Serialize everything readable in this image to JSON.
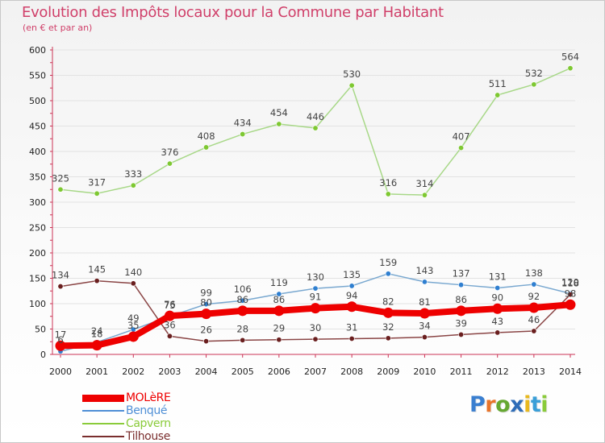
{
  "header": {
    "title": "Evolution des Impôts locaux pour la Commune par Habitant",
    "subtitle": "(en € et par an)"
  },
  "logo": {
    "text": "Proxiti",
    "letter_colors": [
      "#3a7fd0",
      "#e8742a",
      "#66a832",
      "#2f6db8",
      "#e8b81e",
      "#3a9fd8",
      "#8acb3a"
    ]
  },
  "colors": {
    "title": "#d0406a",
    "axis": "#cc3355",
    "grid": "#e2e2e2",
    "tick_text": "#222222",
    "value_text": "#444444"
  },
  "chart_data": {
    "type": "line",
    "title": "Evolution des Impôts locaux pour la Commune par Habitant",
    "subtitle": "(en € et par an)",
    "x": [
      "2000",
      "2001",
      "2002",
      "2003",
      "2004",
      "2005",
      "2006",
      "2007",
      "2008",
      "2009",
      "2010",
      "2011",
      "2012",
      "2013",
      "2014"
    ],
    "ylim": [
      0,
      600
    ],
    "yticks": [
      0,
      50,
      100,
      150,
      200,
      250,
      300,
      350,
      400,
      450,
      500,
      550,
      600
    ],
    "grid": true,
    "legend_position": "bottom-left",
    "series": [
      {
        "name": "MOLèRE",
        "values": [
          17,
          18,
          35,
          76,
          80,
          86,
          86,
          91,
          94,
          82,
          81,
          86,
          90,
          92,
          98
        ],
        "line_color": "#ee0000",
        "marker_color": "#ee0000",
        "legend_color": "#ee0000",
        "emphasis": true,
        "labels": [
          "17",
          "18",
          "35",
          "76",
          "80",
          "86",
          "86",
          "91",
          "94",
          "82",
          "81",
          "86",
          "90",
          "92",
          "98"
        ]
      },
      {
        "name": "Benqué",
        "values": [
          6,
          24,
          49,
          75,
          99,
          106,
          119,
          130,
          135,
          159,
          143,
          137,
          131,
          138,
          120
        ],
        "line_color": "#79a8d0",
        "marker_color": "#2f7fd0",
        "legend_color": "#4f8fd6",
        "emphasis": false,
        "labels": [
          "6",
          "24",
          "49",
          "75",
          "99",
          "106",
          "119",
          "130",
          "135",
          "159",
          "143",
          "137",
          "131",
          "138",
          "120"
        ]
      },
      {
        "name": "Capvern",
        "values": [
          325,
          317,
          333,
          376,
          408,
          434,
          454,
          446,
          530,
          316,
          314,
          407,
          511,
          532,
          564
        ],
        "line_color": "#a8d888",
        "marker_color": "#7ec832",
        "legend_color": "#8acb3a",
        "emphasis": false,
        "labels": [
          "325",
          "317",
          "333",
          "376",
          "408",
          "434",
          "454",
          "446",
          "530",
          "316",
          "314",
          "407",
          "511",
          "532",
          "564"
        ]
      },
      {
        "name": "Tilhouse",
        "values": [
          134,
          145,
          140,
          36,
          26,
          28,
          29,
          30,
          31,
          32,
          34,
          39,
          43,
          46,
          118
        ],
        "line_color": "#8a4545",
        "marker_color": "#6a1f1f",
        "legend_color": "#7a2e2e",
        "emphasis": false,
        "labels": [
          "134",
          "145",
          "140",
          "36",
          "26",
          "28",
          "29",
          "30",
          "31",
          "32",
          "34",
          "39",
          "43",
          "46",
          "118"
        ]
      }
    ]
  }
}
